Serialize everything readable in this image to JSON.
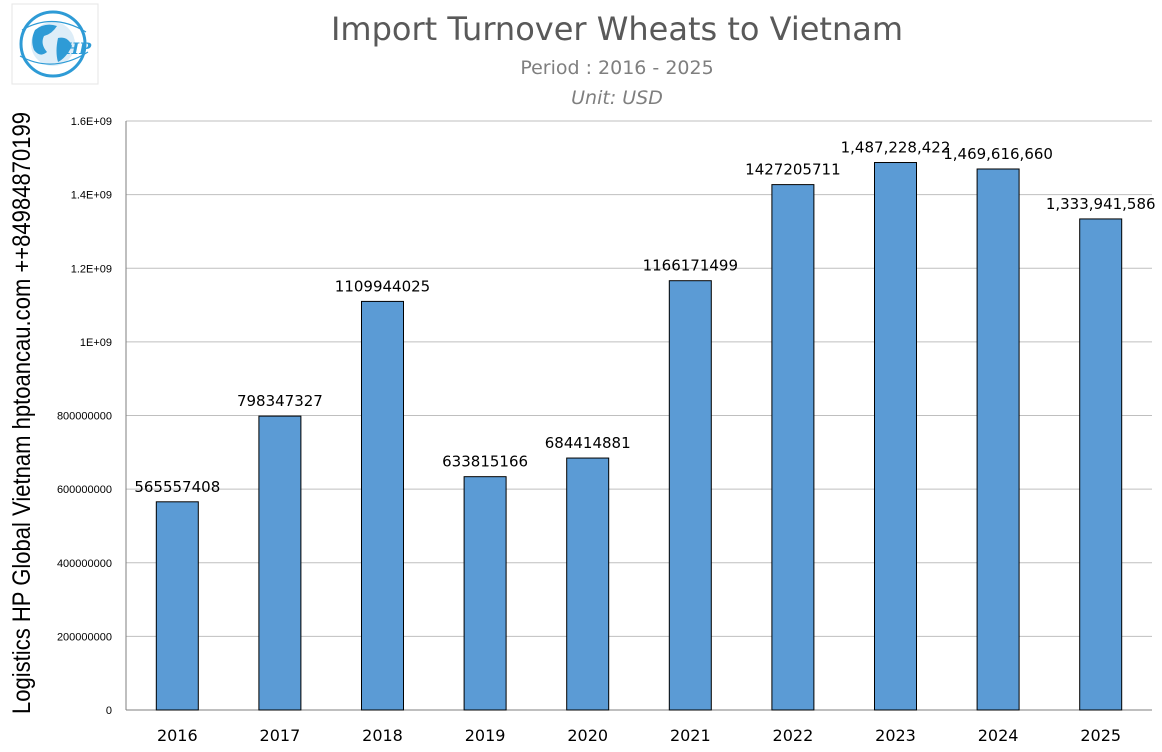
{
  "chart_data": {
    "type": "bar",
    "title": "Import Turnover Wheats to Vietnam",
    "subtitle": "Period : 2016 - 2025",
    "unit": "Unit: USD",
    "categories": [
      "2016",
      "2017",
      "2018",
      "2019",
      "2020",
      "2021",
      "2022",
      "2023",
      "2024",
      "2025"
    ],
    "values": [
      565557408,
      798347327,
      1109944025,
      633815166,
      684414881,
      1166171499,
      1427205711,
      1487228422,
      1469616660,
      1333941586
    ],
    "data_labels": [
      "565557408",
      "798347327",
      "1109944025",
      "633815166",
      "684414881",
      "1166171499",
      "1427205711",
      "1,487,228,422",
      "1,469,616,660",
      "1,333,941,586"
    ],
    "ylim": [
      0,
      1600000000
    ],
    "yticks": [
      0,
      200000000,
      400000000,
      600000000,
      800000000,
      1000000000,
      1200000000,
      1400000000,
      1600000000
    ],
    "ytick_labels": [
      "0",
      "200000000",
      "400000000",
      "600000000",
      "800000000",
      "1E+09",
      "1.2E+09",
      "1.4E+09",
      "1.6E+09"
    ],
    "xlabel": "",
    "ylabel": "",
    "grid": true,
    "bar_color": "#5b9bd5",
    "bar_edge_color": "#000000",
    "grid_color": "#bfbfbf"
  },
  "side_text": "Logistics HP Global Vietnam hptoancau.com ++84984870199",
  "logo": {
    "icon": "globe-logo-icon",
    "text": "HP",
    "color": "#2e9bd6"
  }
}
